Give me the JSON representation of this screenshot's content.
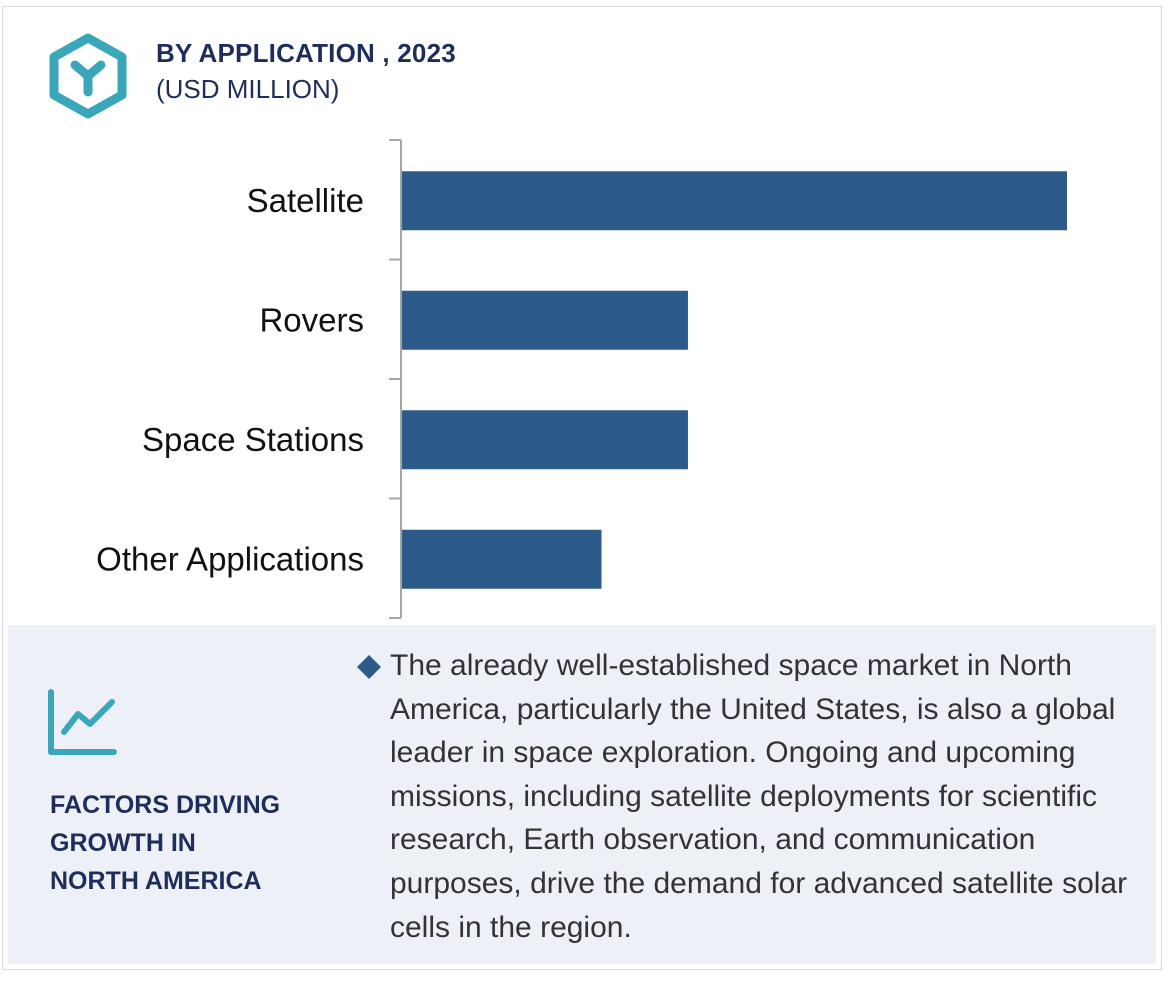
{
  "header": {
    "title": "BY APPLICATION , 2023",
    "subtitle": "(USD MILLION)"
  },
  "colors": {
    "bar": "#2c5b8a",
    "accent": "#3aa6b9",
    "heading": "#1f2d5a",
    "panel": "#eef0f7",
    "axis": "#a6a6a6"
  },
  "chart_data": {
    "type": "bar",
    "orientation": "horizontal",
    "title": "BY APPLICATION , 2023",
    "subtitle": "(USD MILLION)",
    "categories": [
      "Satellite",
      "Rovers",
      "Space Stations",
      "Other Applications"
    ],
    "values": [
      100,
      43,
      43,
      30
    ],
    "xlim": [
      0,
      100
    ],
    "xlabel": "",
    "ylabel": "",
    "grid": false,
    "legend": "none"
  },
  "factors": {
    "icon": "trend-line-icon",
    "heading_lines": [
      "FACTORS DRIVING",
      "GROWTH IN",
      "NORTH AMERICA"
    ],
    "bullet_icon": "diamond-bullet-icon",
    "bullet_text": "The already well-established space market in North America, particularly the United States, is also a global leader in space exploration. Ongoing and upcoming missions, including satellite deployments for scientific research, Earth observation, and communication purposes, drive the demand for advanced satellite solar cells in the region."
  }
}
